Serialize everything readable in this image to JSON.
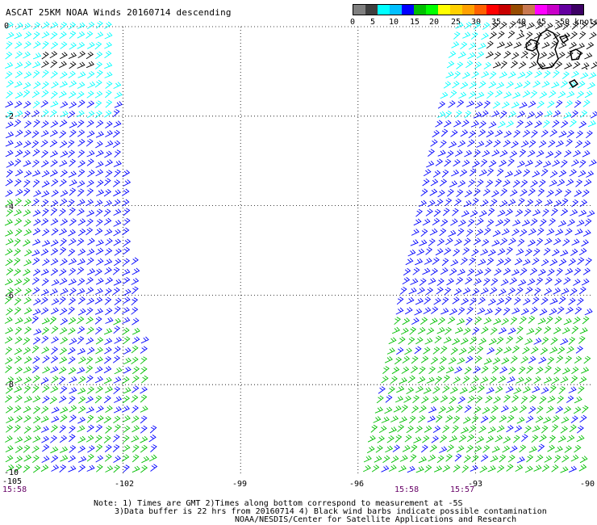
{
  "title": "ASCAT 25KM NOAA Winds 20160714 descending",
  "legend": {
    "colors": [
      "#7f7f7f",
      "#3f3f3f",
      "#00ffff",
      "#00bfff",
      "#0000ff",
      "#00bf00",
      "#00ff00",
      "#ffff00",
      "#ffd000",
      "#ffa000",
      "#ff6000",
      "#ff0000",
      "#c80000",
      "#964b00",
      "#c87850",
      "#ff00ff",
      "#c800c8",
      "#6400a0",
      "#3c0064"
    ],
    "tick_labels": [
      "0",
      "5",
      "10",
      "15",
      "20",
      "25",
      "30",
      "35",
      "40",
      "45",
      ">50 knots"
    ]
  },
  "axes": {
    "x_ticks": [
      "-105",
      "-102",
      "-99",
      "-96",
      "-93",
      "-90"
    ],
    "y_ticks": [
      "0",
      "-2",
      "-4",
      "-6",
      "-8",
      "-10"
    ]
  },
  "pass_times": [
    "15:58",
    "15:58",
    "15:57"
  ],
  "notes": [
    "Note: 1) Times are GMT 2)Times along bottom correspond to measurement at -5S",
    "3)Data buffer is 22 hrs from 20160714 4) Black wind barbs indicate possible contamination",
    "NOAA/NESDIS/Center for Satellite Applications and Research"
  ],
  "map_data": {
    "longitude_range": [
      -105,
      -90
    ],
    "latitude_range": [
      -10,
      0
    ],
    "grid": "dotted",
    "swaths": [
      {
        "name": "west",
        "lon_range_at_top": [
          -105,
          -102.4
        ],
        "lon_range_at_bottom": [
          -105,
          -101.2
        ]
      },
      {
        "name": "east",
        "lon_range_at_top": [
          -93.5,
          -90
        ],
        "lon_range_at_bottom": [
          -95.9,
          -90.3
        ]
      }
    ],
    "land": "Galapagos Islands (top-right)",
    "wind_speed_colors": {
      "5-10": "#00ffff",
      "10-15": "#0000ff",
      "15-20": "#00bf00",
      "contaminated": "#000000"
    }
  }
}
